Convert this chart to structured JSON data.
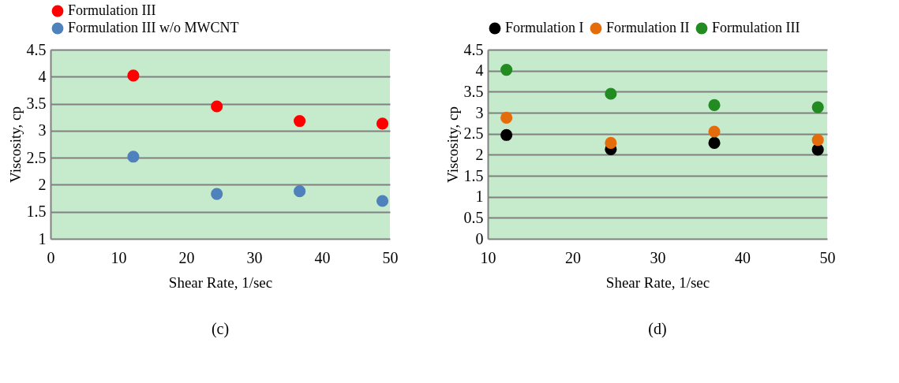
{
  "chart_data": [
    {
      "type": "scatter",
      "xlabel": "Shear Rate, 1/sec",
      "ylabel": "Viscosity, cp",
      "annotations": [
        "(c)"
      ],
      "marker": "circle",
      "legend": "top left",
      "grid": "y",
      "xlim": [
        0,
        50
      ],
      "xticks": [
        0,
        10,
        20,
        30,
        40,
        50
      ],
      "ylim": [
        1,
        4.5
      ],
      "yticks": [
        1,
        1.5,
        2,
        2.5,
        3,
        3.5,
        4,
        4.5
      ],
      "x": [
        12.2,
        24.5,
        36.7,
        48.9
      ],
      "series": [
        {
          "name": "Formulation III",
          "color": "#ff0000",
          "values": [
            4.02,
            3.45,
            3.18,
            3.13
          ]
        },
        {
          "name": "Formulation III w/o MWCNT",
          "color": "#4f81bd",
          "values": [
            2.52,
            1.83,
            1.88,
            1.7
          ]
        }
      ]
    },
    {
      "type": "scatter",
      "xlabel": "Shear Rate, 1/sec",
      "ylabel": "Viscosity, cp",
      "annotations": [
        "(d)"
      ],
      "marker": "circle",
      "legend": "top",
      "grid": "y",
      "xlim": [
        10,
        50
      ],
      "xticks": [
        10,
        20,
        30,
        40,
        50
      ],
      "ylim": [
        0,
        4.5
      ],
      "yticks": [
        0,
        0.5,
        1,
        1.5,
        2,
        2.5,
        3,
        3.5,
        4,
        4.5
      ],
      "x": [
        12.2,
        24.5,
        36.7,
        48.9
      ],
      "series": [
        {
          "name": "Formulation I",
          "color": "#000000",
          "values": [
            2.47,
            2.13,
            2.28,
            2.12
          ]
        },
        {
          "name": "Formulation II",
          "color": "#e46c0a",
          "values": [
            2.88,
            2.28,
            2.55,
            2.35
          ]
        },
        {
          "name": "Formulation III",
          "color": "#228b22",
          "values": [
            4.02,
            3.45,
            3.18,
            3.13
          ]
        }
      ]
    }
  ]
}
